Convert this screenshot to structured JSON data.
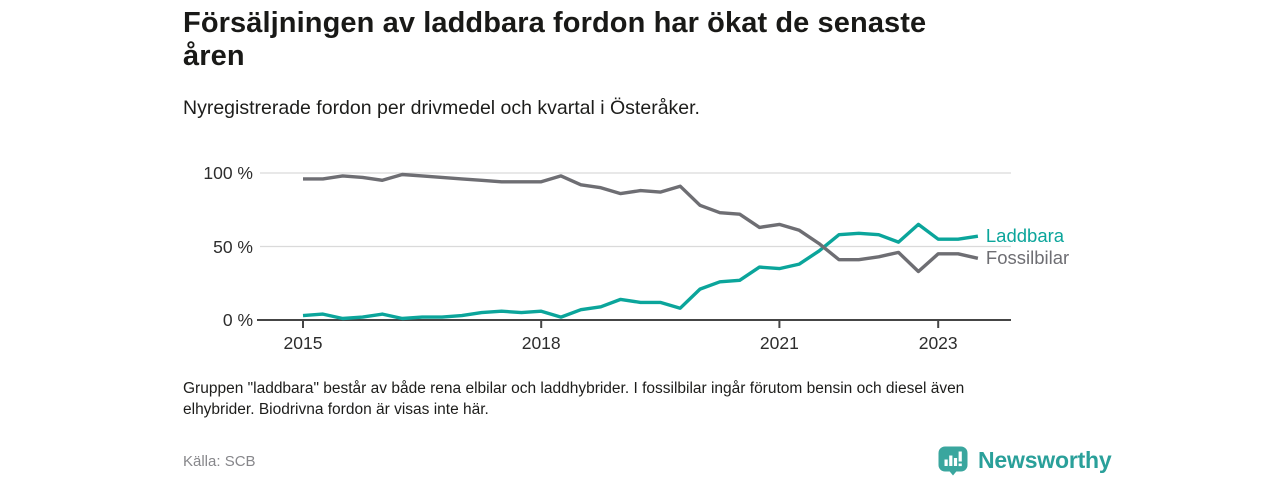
{
  "header": {
    "title_lines": [
      "Försäljningen av laddbara fordon har ökat de senaste",
      "åren"
    ],
    "subtitle": "Nyregistrerade fordon per drivmedel och kvartal i Österåker."
  },
  "chart_data": {
    "type": "line",
    "title": "Nyregistrerade fordon per drivmedel och kvartal i Österåker",
    "x": [
      "2015K1",
      "2015K2",
      "2015K3",
      "2015K4",
      "2016K1",
      "2016K2",
      "2016K3",
      "2016K4",
      "2017K1",
      "2017K2",
      "2017K3",
      "2017K4",
      "2018K1",
      "2018K2",
      "2018K3",
      "2018K4",
      "2019K1",
      "2019K2",
      "2019K3",
      "2019K4",
      "2020K1",
      "2020K2",
      "2020K3",
      "2020K4",
      "2021K1",
      "2021K2",
      "2021K3",
      "2021K4",
      "2022K1",
      "2022K2",
      "2022K3",
      "2022K4",
      "2023K1",
      "2023K2",
      "2023K3"
    ],
    "series": [
      {
        "name": "Laddbara",
        "color": "#0ba59b",
        "values": [
          3,
          4,
          1,
          2,
          4,
          1,
          2,
          2,
          3,
          5,
          6,
          5,
          6,
          2,
          7,
          9,
          14,
          12,
          12,
          8,
          21,
          26,
          27,
          36,
          35,
          38,
          47,
          58,
          59,
          58,
          53,
          65,
          55,
          55,
          57
        ]
      },
      {
        "name": "Fossilbilar",
        "color": "#6e6e73",
        "values": [
          96,
          96,
          98,
          97,
          95,
          99,
          98,
          97,
          96,
          95,
          94,
          94,
          94,
          98,
          92,
          90,
          86,
          88,
          87,
          91,
          78,
          73,
          72,
          63,
          65,
          61,
          52,
          41,
          41,
          43,
          46,
          33,
          45,
          45,
          42
        ]
      }
    ],
    "unit": "%",
    "ylim": [
      0,
      100
    ],
    "y_ticks": [
      {
        "value": 0,
        "label": "0 %"
      },
      {
        "value": 50,
        "label": "50 %"
      },
      {
        "value": 100,
        "label": "100 %"
      }
    ],
    "x_ticks": [
      {
        "index": 0,
        "label": "2015"
      },
      {
        "index": 12,
        "label": "2018"
      },
      {
        "index": 24,
        "label": "2021"
      },
      {
        "index": 32,
        "label": "2023"
      }
    ],
    "grid": "horizontal",
    "legend_position": "right-of-line-ends",
    "colors": {
      "gridline": "#dadada",
      "axis": "#454545",
      "tick_text": "#2d2d2d"
    }
  },
  "footer": {
    "note_lines": [
      "Gruppen \"laddbara\" består av både rena elbilar och laddhybrider. I fossilbilar ingår förutom bensin och diesel även",
      "elhybrider. Biodrivna fordon är visas inte här."
    ],
    "source": "Källa: SCB",
    "logo": {
      "text": "Newsworthy",
      "brand_color": "#2aa09a",
      "icon": "bar-chart-speech-bubble-icon"
    }
  }
}
